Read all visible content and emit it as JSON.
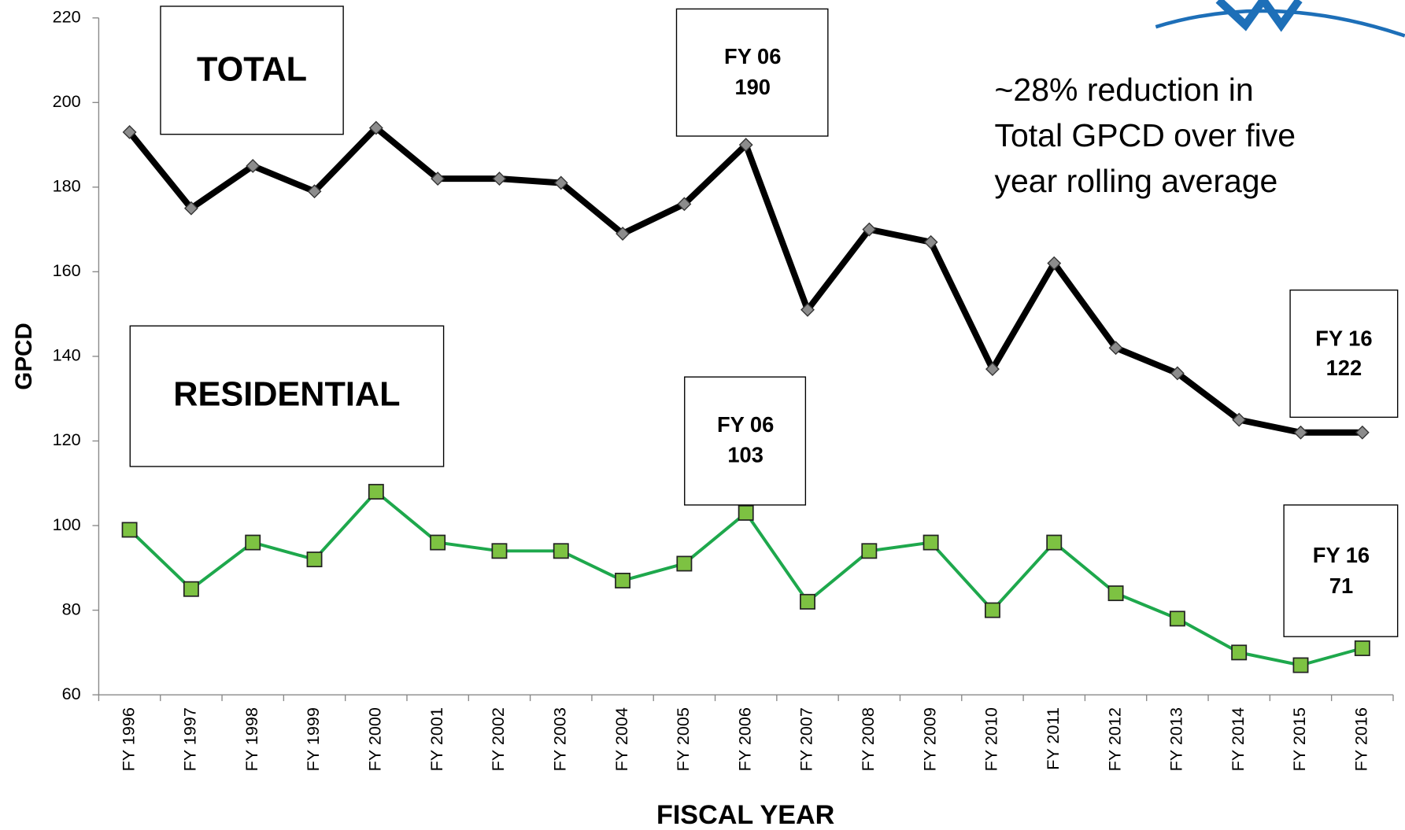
{
  "chart_data": {
    "type": "line",
    "x_label": "FISCAL YEAR",
    "y_label": "GPCD",
    "categories": [
      "FY 1996",
      "FY 1997",
      "FY 1998",
      "FY 1999",
      "FY 2000",
      "FY 2001",
      "FY 2002",
      "FY 2003",
      "FY 2004",
      "FY 2005",
      "FY 2006",
      "FY 2007",
      "FY 2008",
      "FY 2009",
      "FY 2010",
      "FY 2011",
      "FY 2012",
      "FY 2013",
      "FY 2014",
      "FY 2015",
      "FY 2016"
    ],
    "series": [
      {
        "name": "TOTAL",
        "color": "#000000",
        "marker_color": "#8c8c8c",
        "values": [
          193,
          175,
          185,
          179,
          194,
          182,
          182,
          181,
          169,
          176,
          190,
          151,
          170,
          167,
          137,
          162,
          142,
          136,
          125,
          122,
          122
        ]
      },
      {
        "name": "RESIDENTIAL",
        "color": "#1ea84c",
        "marker_color": "#7dc242",
        "values": [
          99,
          85,
          96,
          92,
          108,
          96,
          94,
          94,
          87,
          91,
          103,
          82,
          94,
          96,
          80,
          96,
          84,
          78,
          70,
          67,
          71
        ]
      }
    ],
    "ylim": [
      60,
      220
    ],
    "yticks": [
      60,
      80,
      100,
      120,
      140,
      160,
      180,
      200,
      220
    ],
    "callout_labels": [
      "FY 06",
      "FY 16"
    ],
    "annotation": [
      "~28% reduction in",
      "Total GPCD over five",
      "year rolling average"
    ]
  }
}
